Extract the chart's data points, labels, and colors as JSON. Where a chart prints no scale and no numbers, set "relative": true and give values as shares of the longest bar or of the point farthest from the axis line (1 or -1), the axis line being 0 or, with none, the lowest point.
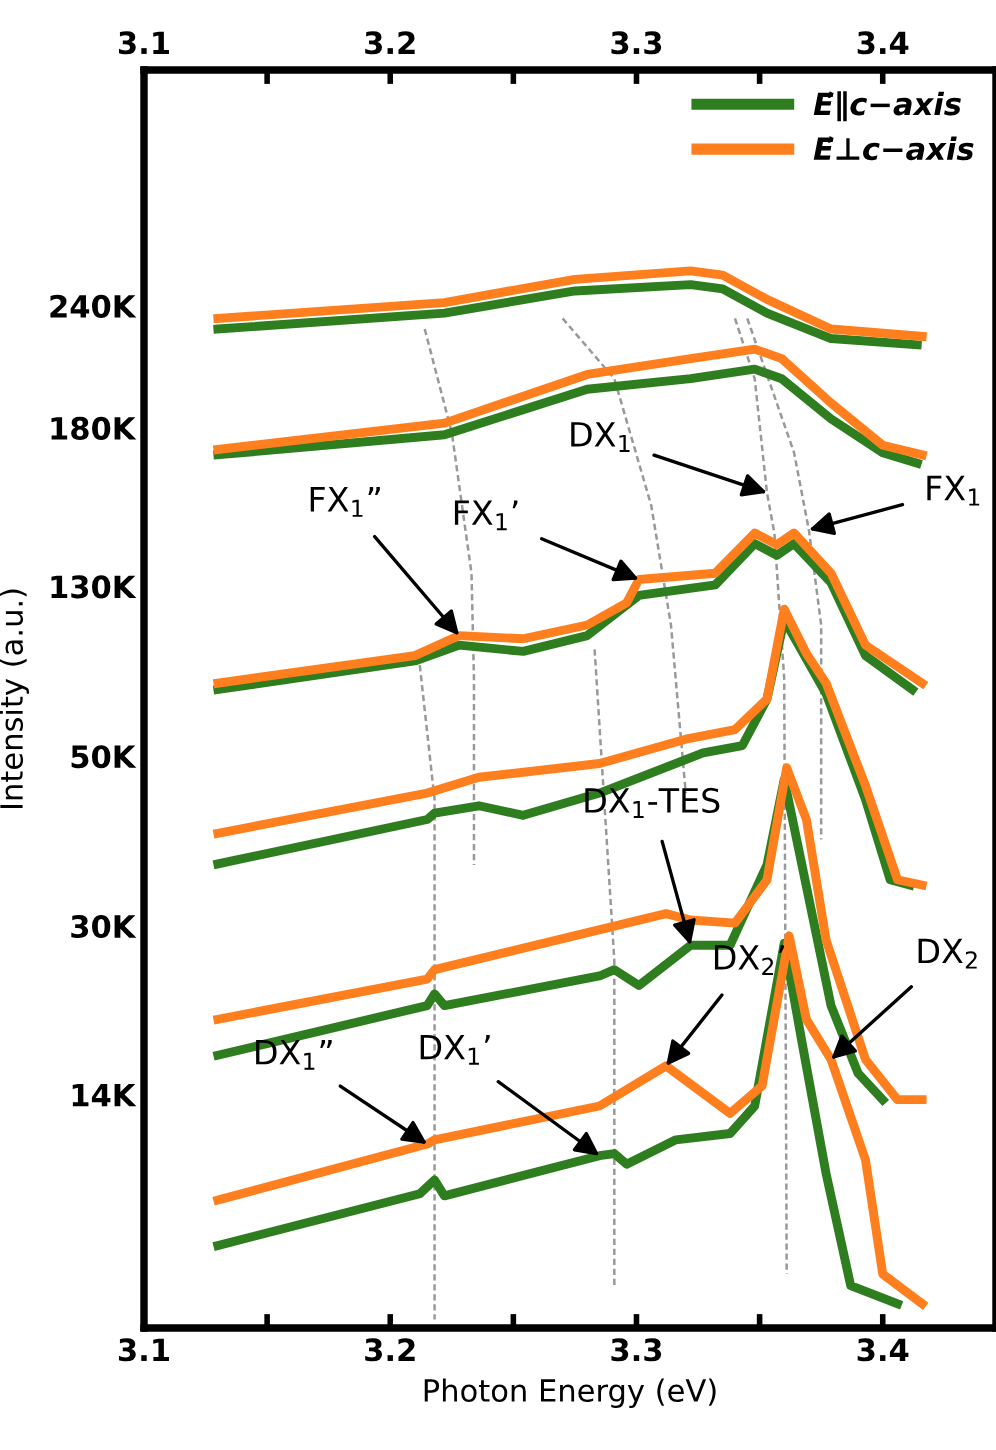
{
  "chart_data": {
    "type": "line",
    "relative": true,
    "xlabel": "Photon Energy (eV)",
    "ylabel": "Intensity (a.u.)",
    "legend": "top right",
    "grid": false,
    "line_style": "solid",
    "marker": "none",
    "xlim": [
      3.1,
      3.446
    ],
    "xticks": [
      3.1,
      {
        "value": 3.15,
        "label": null
      },
      3.2,
      {
        "value": 3.25,
        "label": null
      },
      3.3,
      {
        "value": 3.35,
        "label": null
      },
      3.4
    ],
    "x2lim": [
      3.1,
      3.446
    ],
    "x2ticks": [
      3.1,
      {
        "value": 3.15,
        "label": null
      },
      3.2,
      {
        "value": 3.25,
        "label": null
      },
      3.3,
      {
        "value": 3.35,
        "label": null
      },
      3.4
    ],
    "series": [
      {
        "name": "E⃗∥c−axis",
        "color": "#2e7d1e",
        "x": [
          3.13,
          3.212,
          3.218,
          3.222,
          3.285,
          3.291,
          3.296,
          3.316,
          3.338,
          3.348,
          3.36,
          3.367,
          3.377,
          3.387,
          3.406
        ],
        "values": [
          0.078,
          0.127,
          0.14,
          0.125,
          0.163,
          0.165,
          0.155,
          0.178,
          0.184,
          0.21,
          0.364,
          0.273,
          0.146,
          0.04,
          0.023
        ]
      },
      {
        "name": "E⃗⊥c−axis",
        "color": "#ff7f1e",
        "x": [
          3.13,
          3.215,
          3.218,
          3.285,
          3.312,
          3.338,
          3.351,
          3.362,
          3.369,
          3.379,
          3.393,
          3.4,
          3.416
        ],
        "values": [
          0.121,
          0.174,
          0.178,
          0.21,
          0.248,
          0.203,
          0.229,
          0.371,
          0.292,
          0.254,
          0.159,
          0.051,
          0.023
        ]
      },
      {
        "color": "#2e7d1e",
        "x": [
          3.13,
          3.215,
          3.218,
          3.222,
          3.285,
          3.291,
          3.301,
          3.322,
          3.338,
          3.353,
          3.36,
          3.379,
          3.39,
          3.4
        ],
        "values": [
          0.258,
          0.305,
          0.316,
          0.305,
          0.333,
          0.339,
          0.324,
          0.362,
          0.362,
          0.438,
          0.519,
          0.305,
          0.241,
          0.216
        ]
      },
      {
        "color": "#ff7f1e",
        "x": [
          3.13,
          3.215,
          3.218,
          3.312,
          3.322,
          3.34,
          3.353,
          3.361,
          3.369,
          3.377,
          3.393,
          3.406,
          3.416
        ],
        "values": [
          0.292,
          0.33,
          0.339,
          0.392,
          0.386,
          0.383,
          0.424,
          0.53,
          0.481,
          0.367,
          0.254,
          0.216,
          0.216
        ]
      },
      {
        "color": "#2e7d1e",
        "x": [
          3.13,
          3.215,
          3.218,
          3.236,
          3.254,
          3.285,
          3.327,
          3.343,
          3.353,
          3.36,
          3.377,
          3.393,
          3.403,
          3.411
        ],
        "values": [
          0.439,
          0.481,
          0.487,
          0.494,
          0.485,
          0.506,
          0.544,
          0.551,
          0.595,
          0.67,
          0.6,
          0.5,
          0.424,
          0.419
        ]
      },
      {
        "color": "#ff7f1e",
        "x": [
          3.13,
          3.215,
          3.236,
          3.285,
          3.32,
          3.34,
          3.353,
          3.36,
          3.369,
          3.377,
          3.393,
          3.406,
          3.416
        ],
        "values": [
          0.468,
          0.506,
          0.521,
          0.534,
          0.557,
          0.566,
          0.595,
          0.68,
          0.638,
          0.61,
          0.513,
          0.424,
          0.419
        ]
      },
      {
        "color": "#2e7d1e",
        "x": [
          3.13,
          3.21,
          3.228,
          3.254,
          3.28,
          3.301,
          3.332,
          3.348,
          3.357,
          3.364,
          3.379,
          3.393,
          3.412
        ],
        "values": [
          0.604,
          0.631,
          0.646,
          0.64,
          0.655,
          0.693,
          0.703,
          0.742,
          0.731,
          0.742,
          0.705,
          0.636,
          0.604
        ]
      },
      {
        "color": "#ff7f1e",
        "x": [
          3.13,
          3.21,
          3.228,
          3.254,
          3.28,
          3.296,
          3.301,
          3.332,
          3.348,
          3.357,
          3.364,
          3.379,
          3.393,
          3.416
        ],
        "values": [
          0.61,
          0.636,
          0.655,
          0.652,
          0.665,
          0.686,
          0.708,
          0.714,
          0.752,
          0.741,
          0.752,
          0.714,
          0.646,
          0.61
        ]
      },
      {
        "color": "#2e7d1e",
        "x": [
          3.13,
          3.222,
          3.28,
          3.322,
          3.348,
          3.359,
          3.379,
          3.4,
          3.414
        ],
        "values": [
          0.826,
          0.845,
          0.888,
          0.898,
          0.907,
          0.898,
          0.86,
          0.828,
          0.818
        ]
      },
      {
        "color": "#ff7f1e",
        "x": [
          3.13,
          3.222,
          3.28,
          3.322,
          3.348,
          3.359,
          3.379,
          3.4,
          3.416
        ],
        "values": [
          0.831,
          0.856,
          0.902,
          0.917,
          0.926,
          0.917,
          0.875,
          0.835,
          0.826
        ]
      },
      {
        "color": "#2e7d1e",
        "x": [
          3.13,
          3.222,
          3.275,
          3.322,
          3.335,
          3.353,
          3.379,
          3.414
        ],
        "values": [
          0.945,
          0.96,
          0.981,
          0.987,
          0.983,
          0.96,
          0.936,
          0.93
        ]
      },
      {
        "color": "#ff7f1e",
        "x": [
          3.13,
          3.222,
          3.275,
          3.322,
          3.335,
          3.353,
          3.379,
          3.416
        ],
        "values": [
          0.955,
          0.97,
          0.992,
          1.0,
          0.996,
          0.973,
          0.945,
          0.938
        ]
      },
      {
        "color": "#999999",
        "line_style": "dashed",
        "x": [
          3.214,
          3.225,
          3.233,
          3.234,
          3.234
        ],
        "values": [
          0.945,
          0.847,
          0.714,
          0.614,
          0.438
        ]
      },
      {
        "color": "#999999",
        "line_style": "dashed",
        "x": [
          3.212,
          3.218,
          3.218
        ],
        "values": [
          0.627,
          0.5,
          0.008
        ]
      },
      {
        "color": "#999999",
        "line_style": "dashed",
        "x": [
          3.27,
          3.291,
          3.306,
          3.314,
          3.32
        ],
        "values": [
          0.955,
          0.898,
          0.778,
          0.665,
          0.506
        ]
      },
      {
        "color": "#999999",
        "line_style": "dashed",
        "x": [
          3.283,
          3.291,
          3.291
        ],
        "values": [
          0.642,
          0.348,
          0.04
        ]
      },
      {
        "color": "#999999",
        "line_style": "dashed",
        "x": [
          3.34,
          3.348,
          3.353,
          3.356,
          3.36,
          3.361
        ],
        "values": [
          0.955,
          0.898,
          0.79,
          0.752,
          0.614,
          0.051
        ]
      },
      {
        "color": "#999999",
        "line_style": "dashed",
        "x": [
          3.345,
          3.364,
          3.37,
          3.375,
          3.375
        ],
        "values": [
          0.955,
          0.828,
          0.755,
          0.665,
          0.462
        ]
      }
    ],
    "annotations": [
      "240K",
      "180K",
      "130K",
      "50K",
      "30K",
      "14K",
      {
        "text": "FX$_{1}$”",
        "x": 3.228,
        "y": 0.655
      },
      {
        "text": "FX$_{1}$’",
        "x": 3.301,
        "y": 0.708
      },
      {
        "text": "DX$_{1}$",
        "x": 3.353,
        "y": 0.79
      },
      {
        "text": "FX$_{1}$",
        "x": 3.37,
        "y": 0.755
      },
      {
        "text": "DX$_{1}$-TES",
        "x": 3.322,
        "y": 0.362
      },
      {
        "text": "DX$_{2}$’",
        "x": 3.312,
        "y": 0.248
      },
      {
        "text": "DX$_{2}$",
        "x": 3.379,
        "y": 0.254
      },
      {
        "text": "DX$_{1}$”",
        "x": 3.215,
        "y": 0.174
      },
      {
        "text": "DX$_{1}$’",
        "x": 3.285,
        "y": 0.163
      }
    ]
  }
}
